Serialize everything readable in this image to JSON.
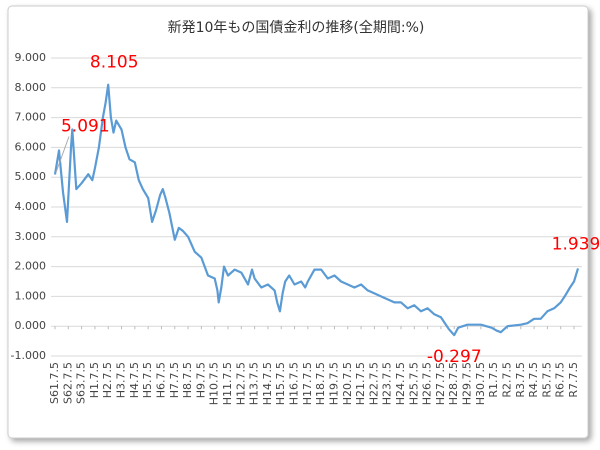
{
  "chart_data": {
    "type": "line",
    "title": "新発10年もの国債金利の推移(全期間:%)",
    "xlim": [
      -0.3,
      39.6
    ],
    "xticks": [
      {
        "value": 0,
        "label": "S61.7.5"
      },
      {
        "value": 1,
        "label": "S62.7.5"
      },
      {
        "value": 2,
        "label": "S63.7.5"
      },
      {
        "value": 3,
        "label": "H1.7.5"
      },
      {
        "value": 4,
        "label": "H2.7.5"
      },
      {
        "value": 5,
        "label": "H3.7.5"
      },
      {
        "value": 6,
        "label": "H4.7.5"
      },
      {
        "value": 7,
        "label": "H5.7.5"
      },
      {
        "value": 8,
        "label": "H6.7.5"
      },
      {
        "value": 9,
        "label": "H7.7.5"
      },
      {
        "value": 10,
        "label": "H8.7.5"
      },
      {
        "value": 11,
        "label": "H9.7.5"
      },
      {
        "value": 12,
        "label": "H10.7.5"
      },
      {
        "value": 13,
        "label": "H11.7.5"
      },
      {
        "value": 14,
        "label": "H12.7.5"
      },
      {
        "value": 15,
        "label": "H13.7.5"
      },
      {
        "value": 16,
        "label": "H14.7.5"
      },
      {
        "value": 17,
        "label": "H15.7.5"
      },
      {
        "value": 18,
        "label": "H16.7.5"
      },
      {
        "value": 19,
        "label": "H17.7.5"
      },
      {
        "value": 20,
        "label": "H18.7.5"
      },
      {
        "value": 21,
        "label": "H19.7.5"
      },
      {
        "value": 22,
        "label": "H20.7.5"
      },
      {
        "value": 23,
        "label": "H21.7.5"
      },
      {
        "value": 24,
        "label": "H22.7.5"
      },
      {
        "value": 25,
        "label": "H23.7.5"
      },
      {
        "value": 26,
        "label": "H24.7.5"
      },
      {
        "value": 27,
        "label": "H25.7.5"
      },
      {
        "value": 28,
        "label": "H26.7.5"
      },
      {
        "value": 29,
        "label": "H27.7.5"
      },
      {
        "value": 30,
        "label": "H28.7.5"
      },
      {
        "value": 31,
        "label": "H29.7.5"
      },
      {
        "value": 32,
        "label": "H30.7.5"
      },
      {
        "value": 33,
        "label": "R1.7.5"
      },
      {
        "value": 34,
        "label": "R2.7.5"
      },
      {
        "value": 35,
        "label": "R3.7.5"
      },
      {
        "value": 36,
        "label": "R4.7.5"
      },
      {
        "value": 37,
        "label": "R5.7.5"
      },
      {
        "value": 38,
        "label": "R6.7.5"
      },
      {
        "value": 39,
        "label": "R7.7.5"
      }
    ],
    "ylim": [
      -1,
      9
    ],
    "yticks": [
      {
        "value": 9,
        "label": "9.000"
      },
      {
        "value": 8,
        "label": "8.000"
      },
      {
        "value": 7,
        "label": "7.000"
      },
      {
        "value": 6,
        "label": "6.000"
      },
      {
        "value": 5,
        "label": "5.000"
      },
      {
        "value": 4,
        "label": "4.000"
      },
      {
        "value": 3,
        "label": "3.000"
      },
      {
        "value": 2,
        "label": "2.000"
      },
      {
        "value": 1,
        "label": "1.000"
      },
      {
        "value": 0,
        "label": "0.000"
      },
      {
        "value": -1,
        "label": "-1.000"
      }
    ],
    "grid": true,
    "series": [
      {
        "color": "#5b9bd5",
        "x": [
          0,
          0.3,
          0.6,
          0.9,
          1.2,
          1.3,
          1.6,
          2,
          2.5,
          2.8,
          3,
          3.3,
          3.6,
          3.8,
          4,
          4.2,
          4.4,
          4.6,
          5,
          5.3,
          5.6,
          6,
          6.3,
          6.6,
          7,
          7.3,
          7.6,
          7.9,
          8.1,
          8.3,
          8.6,
          9,
          9.3,
          9.6,
          10,
          10.5,
          11,
          11.5,
          12,
          12.2,
          12.3,
          12.5,
          12.7,
          13,
          13.5,
          14,
          14.5,
          14.8,
          15,
          15.5,
          16,
          16.5,
          16.7,
          16.9,
          17.1,
          17.3,
          17.6,
          18,
          18.5,
          18.8,
          19,
          19.5,
          20,
          20.5,
          21,
          21.5,
          22,
          22.5,
          23,
          23.5,
          24,
          24.5,
          25,
          25.5,
          26,
          26.5,
          27,
          27.5,
          28,
          28.5,
          29,
          29.3,
          29.6,
          30,
          30.3,
          31,
          32,
          32.8,
          33.2,
          33.5,
          34,
          35,
          35.5,
          36,
          36.5,
          37,
          37.5,
          38,
          38.3,
          38.7,
          39,
          39.3
        ],
        "values": [
          5.091,
          5.9,
          4.5,
          3.5,
          6.0,
          6.6,
          4.6,
          4.8,
          5.1,
          4.9,
          5.3,
          6.0,
          7.0,
          7.5,
          8.105,
          7.0,
          6.5,
          6.9,
          6.6,
          6.0,
          5.6,
          5.5,
          4.9,
          4.6,
          4.3,
          3.5,
          3.9,
          4.4,
          4.6,
          4.3,
          3.8,
          2.9,
          3.3,
          3.2,
          3.0,
          2.5,
          2.3,
          1.7,
          1.6,
          1.2,
          0.8,
          1.3,
          2.0,
          1.7,
          1.9,
          1.8,
          1.4,
          1.9,
          1.6,
          1.3,
          1.4,
          1.2,
          0.8,
          0.5,
          1.1,
          1.5,
          1.7,
          1.4,
          1.5,
          1.3,
          1.5,
          1.9,
          1.9,
          1.6,
          1.7,
          1.5,
          1.4,
          1.3,
          1.4,
          1.2,
          1.1,
          1.0,
          0.9,
          0.8,
          0.8,
          0.6,
          0.7,
          0.5,
          0.6,
          0.4,
          0.3,
          0.1,
          -0.1,
          -0.297,
          -0.05,
          0.05,
          0.05,
          -0.05,
          -0.15,
          -0.2,
          0.0,
          0.05,
          0.1,
          0.25,
          0.25,
          0.5,
          0.6,
          0.8,
          1.0,
          1.3,
          1.5,
          1.939
        ]
      }
    ],
    "annotations": [
      {
        "label": "5.091",
        "x": 0,
        "y": 5.091
      },
      {
        "label": "8.105",
        "x": 4,
        "y": 8.105
      },
      {
        "label": "-0.297",
        "x": 30,
        "y": -0.297
      },
      {
        "label": "1.939",
        "x": 39.3,
        "y": 1.939
      }
    ]
  }
}
